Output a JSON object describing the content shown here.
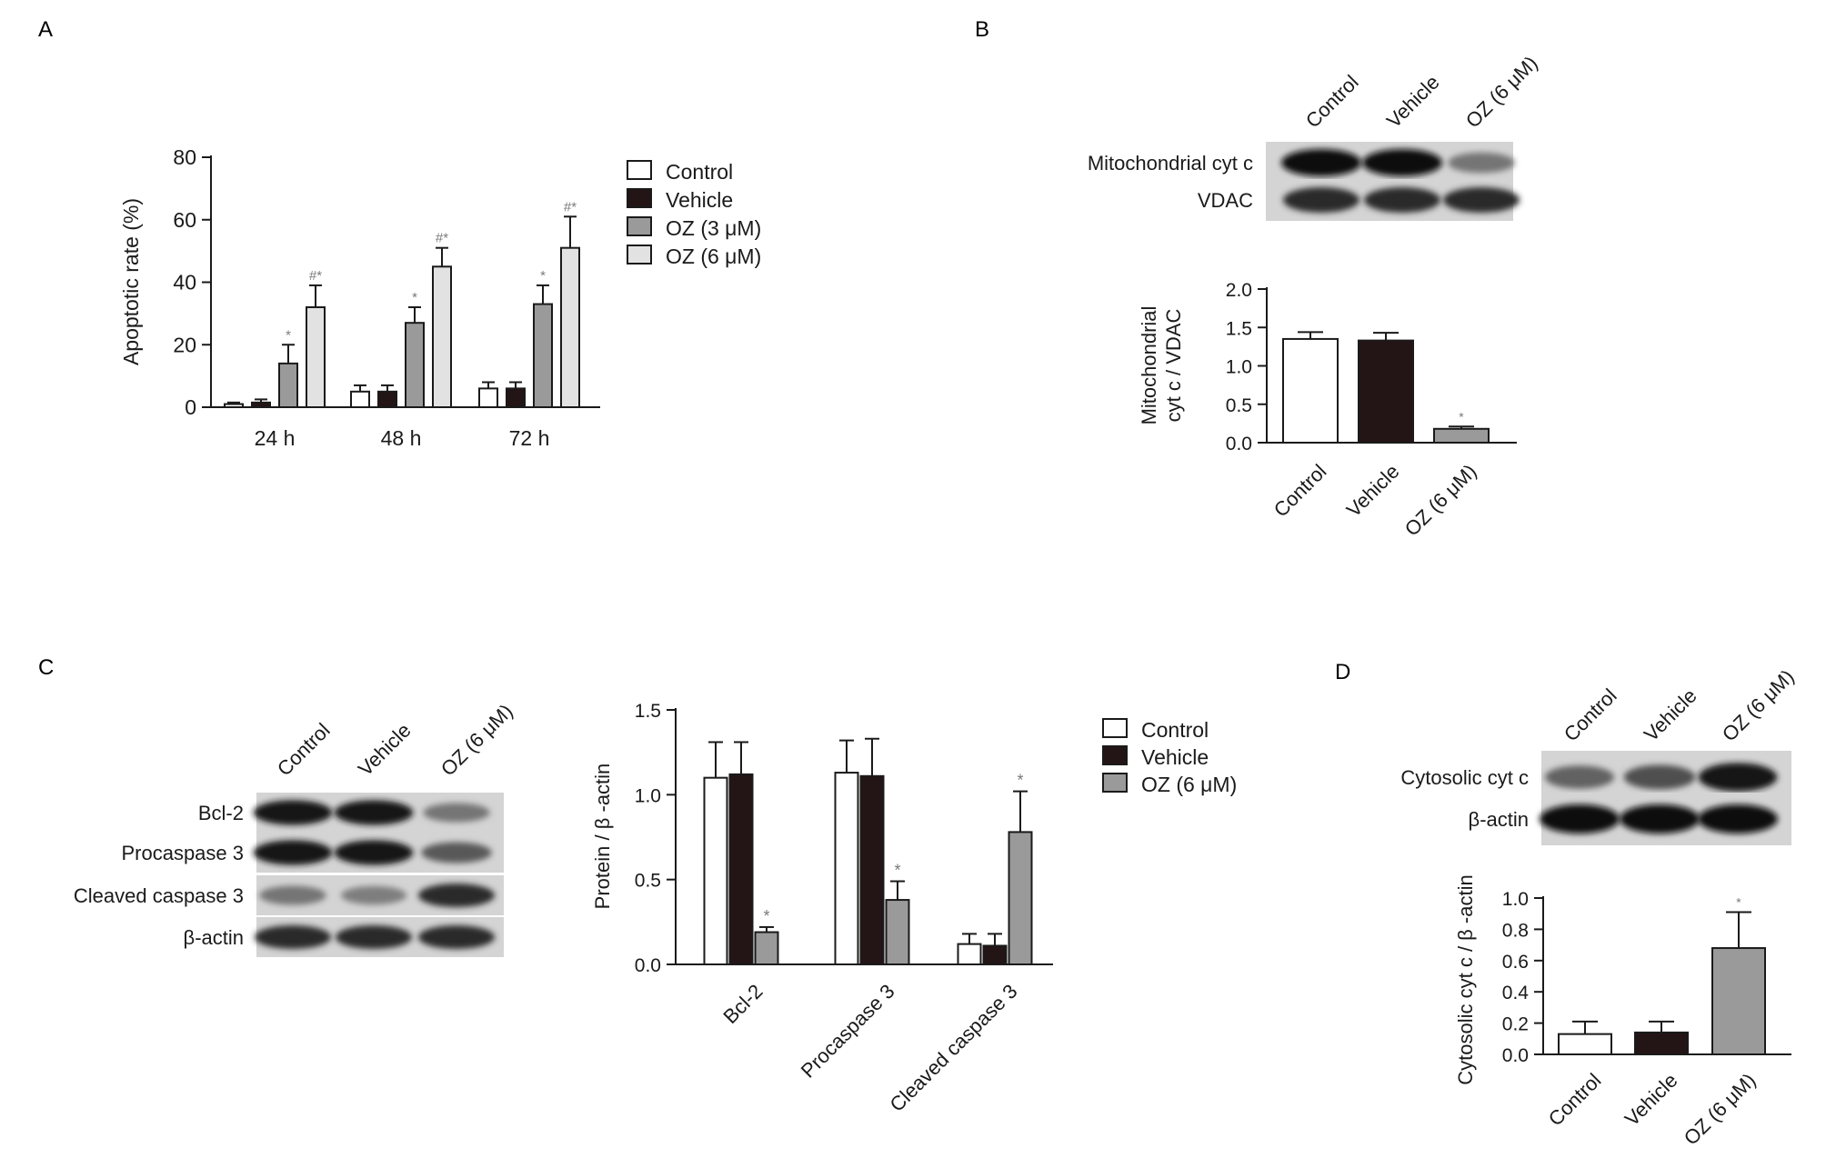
{
  "panels": {
    "A": "A",
    "B": "B",
    "C": "C",
    "D": "D"
  },
  "colors": {
    "control": "#ffffff",
    "vehicle": "#231416",
    "oz3": "#9a9a9a",
    "oz6_light": "#e2e2e2",
    "oz6_gray": "#9a9a9a",
    "axis": "#1a1a1a",
    "annotation": "#7a7a7a"
  },
  "blots": {
    "B": {
      "lanes": [
        "Control",
        "Vehicle",
        "OZ (6 μM)"
      ],
      "rows": [
        {
          "label": "Mitochondrial cyt c",
          "band_intensity": [
            1.0,
            1.0,
            0.45
          ]
        },
        {
          "label": "VDAC",
          "band_intensity": [
            0.85,
            0.85,
            0.85
          ]
        }
      ]
    },
    "C": {
      "lanes": [
        "Control",
        "Vehicle",
        "OZ (6 μM)"
      ],
      "rows": [
        {
          "label": "Bcl-2",
          "band_intensity": [
            0.95,
            0.95,
            0.45
          ]
        },
        {
          "label": "Procaspase 3",
          "band_intensity": [
            0.95,
            0.95,
            0.6
          ]
        },
        {
          "label": "Cleaved caspase 3",
          "band_intensity": [
            0.45,
            0.4,
            0.85
          ]
        },
        {
          "label": "β-actin",
          "band_intensity": [
            0.85,
            0.85,
            0.85
          ]
        }
      ]
    },
    "D": {
      "lanes": [
        "Control",
        "Vehicle",
        "OZ (6 μM)"
      ],
      "rows": [
        {
          "label": "Cytosolic cyt c",
          "band_intensity": [
            0.55,
            0.65,
            0.95
          ]
        },
        {
          "label": "β-actin",
          "band_intensity": [
            1.0,
            1.0,
            1.0
          ]
        }
      ]
    }
  },
  "chart_data": [
    {
      "panel": "A",
      "type": "bar",
      "title": "",
      "xlabel": "",
      "ylabel": "Apoptotic rate (%)",
      "ylim": [
        0,
        80
      ],
      "yticks": [
        0,
        20,
        40,
        60,
        80
      ],
      "categories": [
        "24 h",
        "48 h",
        "72 h"
      ],
      "legend_position": "right",
      "series": [
        {
          "name": "Control",
          "color": "#ffffff",
          "values": [
            1,
            5,
            6
          ],
          "errors": [
            0.5,
            2,
            2
          ],
          "annotations": [
            "",
            "",
            ""
          ]
        },
        {
          "name": "Vehicle",
          "color": "#231416",
          "values": [
            1.5,
            5,
            6
          ],
          "errors": [
            1,
            2,
            2
          ],
          "annotations": [
            "",
            "",
            ""
          ]
        },
        {
          "name": "OZ (3 μM)",
          "color": "#9a9a9a",
          "values": [
            14,
            27,
            33
          ],
          "errors": [
            6,
            5,
            6
          ],
          "annotations": [
            "*",
            "*",
            "*"
          ]
        },
        {
          "name": "OZ (6 μM)",
          "color": "#e2e2e2",
          "values": [
            32,
            45,
            51
          ],
          "errors": [
            7,
            6,
            10
          ],
          "annotations": [
            "#*",
            "#*",
            "#*"
          ]
        }
      ]
    },
    {
      "panel": "B",
      "type": "bar",
      "title": "",
      "xlabel": "",
      "ylabel_lines": [
        "Mitochondrial",
        "cyt c / VDAC"
      ],
      "ylim": [
        0,
        2.0
      ],
      "yticks": [
        "0.0",
        "0.5",
        "1.0",
        "1.5",
        "2.0"
      ],
      "categories": [
        "Control",
        "Vehicle",
        "OZ (6 μM)"
      ],
      "series": [
        {
          "name": "",
          "colors": [
            "#ffffff",
            "#231416",
            "#9a9a9a"
          ],
          "values": [
            1.35,
            1.33,
            0.18
          ],
          "errors": [
            0.09,
            0.1,
            0.03
          ],
          "annotations": [
            "",
            "",
            "*"
          ]
        }
      ]
    },
    {
      "panel": "C",
      "type": "bar",
      "title": "",
      "xlabel": "",
      "ylabel": "Protein / β -actin",
      "ylim": [
        0,
        1.5
      ],
      "yticks": [
        "0.0",
        "0.5",
        "1.0",
        "1.5"
      ],
      "categories": [
        "Bcl-2",
        "Procaspase 3",
        "Cleaved caspase 3"
      ],
      "legend_position": "right",
      "series": [
        {
          "name": "Control",
          "color": "#ffffff",
          "values": [
            1.1,
            1.13,
            0.12
          ],
          "errors": [
            0.21,
            0.19,
            0.06
          ],
          "annotations": [
            "",
            "",
            ""
          ]
        },
        {
          "name": "Vehicle",
          "color": "#231416",
          "values": [
            1.12,
            1.11,
            0.11
          ],
          "errors": [
            0.19,
            0.22,
            0.07
          ],
          "annotations": [
            "",
            "",
            ""
          ]
        },
        {
          "name": "OZ (6 μM)",
          "color": "#9a9a9a",
          "values": [
            0.19,
            0.38,
            0.78
          ],
          "errors": [
            0.03,
            0.11,
            0.24
          ],
          "annotations": [
            "*",
            "*",
            "*"
          ]
        }
      ]
    },
    {
      "panel": "D",
      "type": "bar",
      "title": "",
      "xlabel": "",
      "ylabel": "Cytosolic cyt c / β -actin",
      "ylim": [
        0,
        1.0
      ],
      "yticks": [
        "0.0",
        "0.2",
        "0.4",
        "0.6",
        "0.8",
        "1.0"
      ],
      "categories": [
        "Control",
        "Vehicle",
        "OZ (6 μM)"
      ],
      "series": [
        {
          "name": "",
          "colors": [
            "#ffffff",
            "#231416",
            "#9a9a9a"
          ],
          "values": [
            0.13,
            0.14,
            0.68
          ],
          "errors": [
            0.08,
            0.07,
            0.23
          ],
          "annotations": [
            "",
            "",
            "*"
          ]
        }
      ]
    }
  ]
}
